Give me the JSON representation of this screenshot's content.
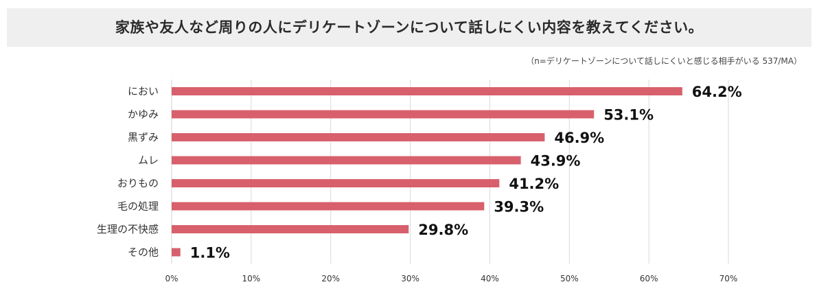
{
  "chart_data": {
    "type": "bar",
    "orientation": "horizontal",
    "title": "家族や友人など周りの人にデリケートゾーンについて話しにくい内容を教えてください。",
    "note": "（n=デリケートゾーンについて話しにくいと感じる相手がいる 537/MA）",
    "categories": [
      "におい",
      "かゆみ",
      "黒ずみ",
      "ムレ",
      "おりもの",
      "毛の処理",
      "生理の不快感",
      "その他"
    ],
    "values": [
      64.2,
      53.1,
      46.9,
      43.9,
      41.2,
      39.3,
      29.8,
      1.1
    ],
    "value_labels": [
      "64.2%",
      "53.1%",
      "46.9%",
      "43.9%",
      "41.2%",
      "39.3%",
      "29.8%",
      "1.1%"
    ],
    "xlim": [
      0,
      70
    ],
    "xticks": [
      0,
      10,
      20,
      30,
      40,
      50,
      60,
      70
    ],
    "xtick_labels": [
      "0%",
      "10%",
      "20%",
      "30%",
      "40%",
      "50%",
      "60%",
      "70%"
    ],
    "grid": true,
    "colors": {
      "bar": "#d7606c",
      "grid": "#d9d9d9"
    }
  }
}
